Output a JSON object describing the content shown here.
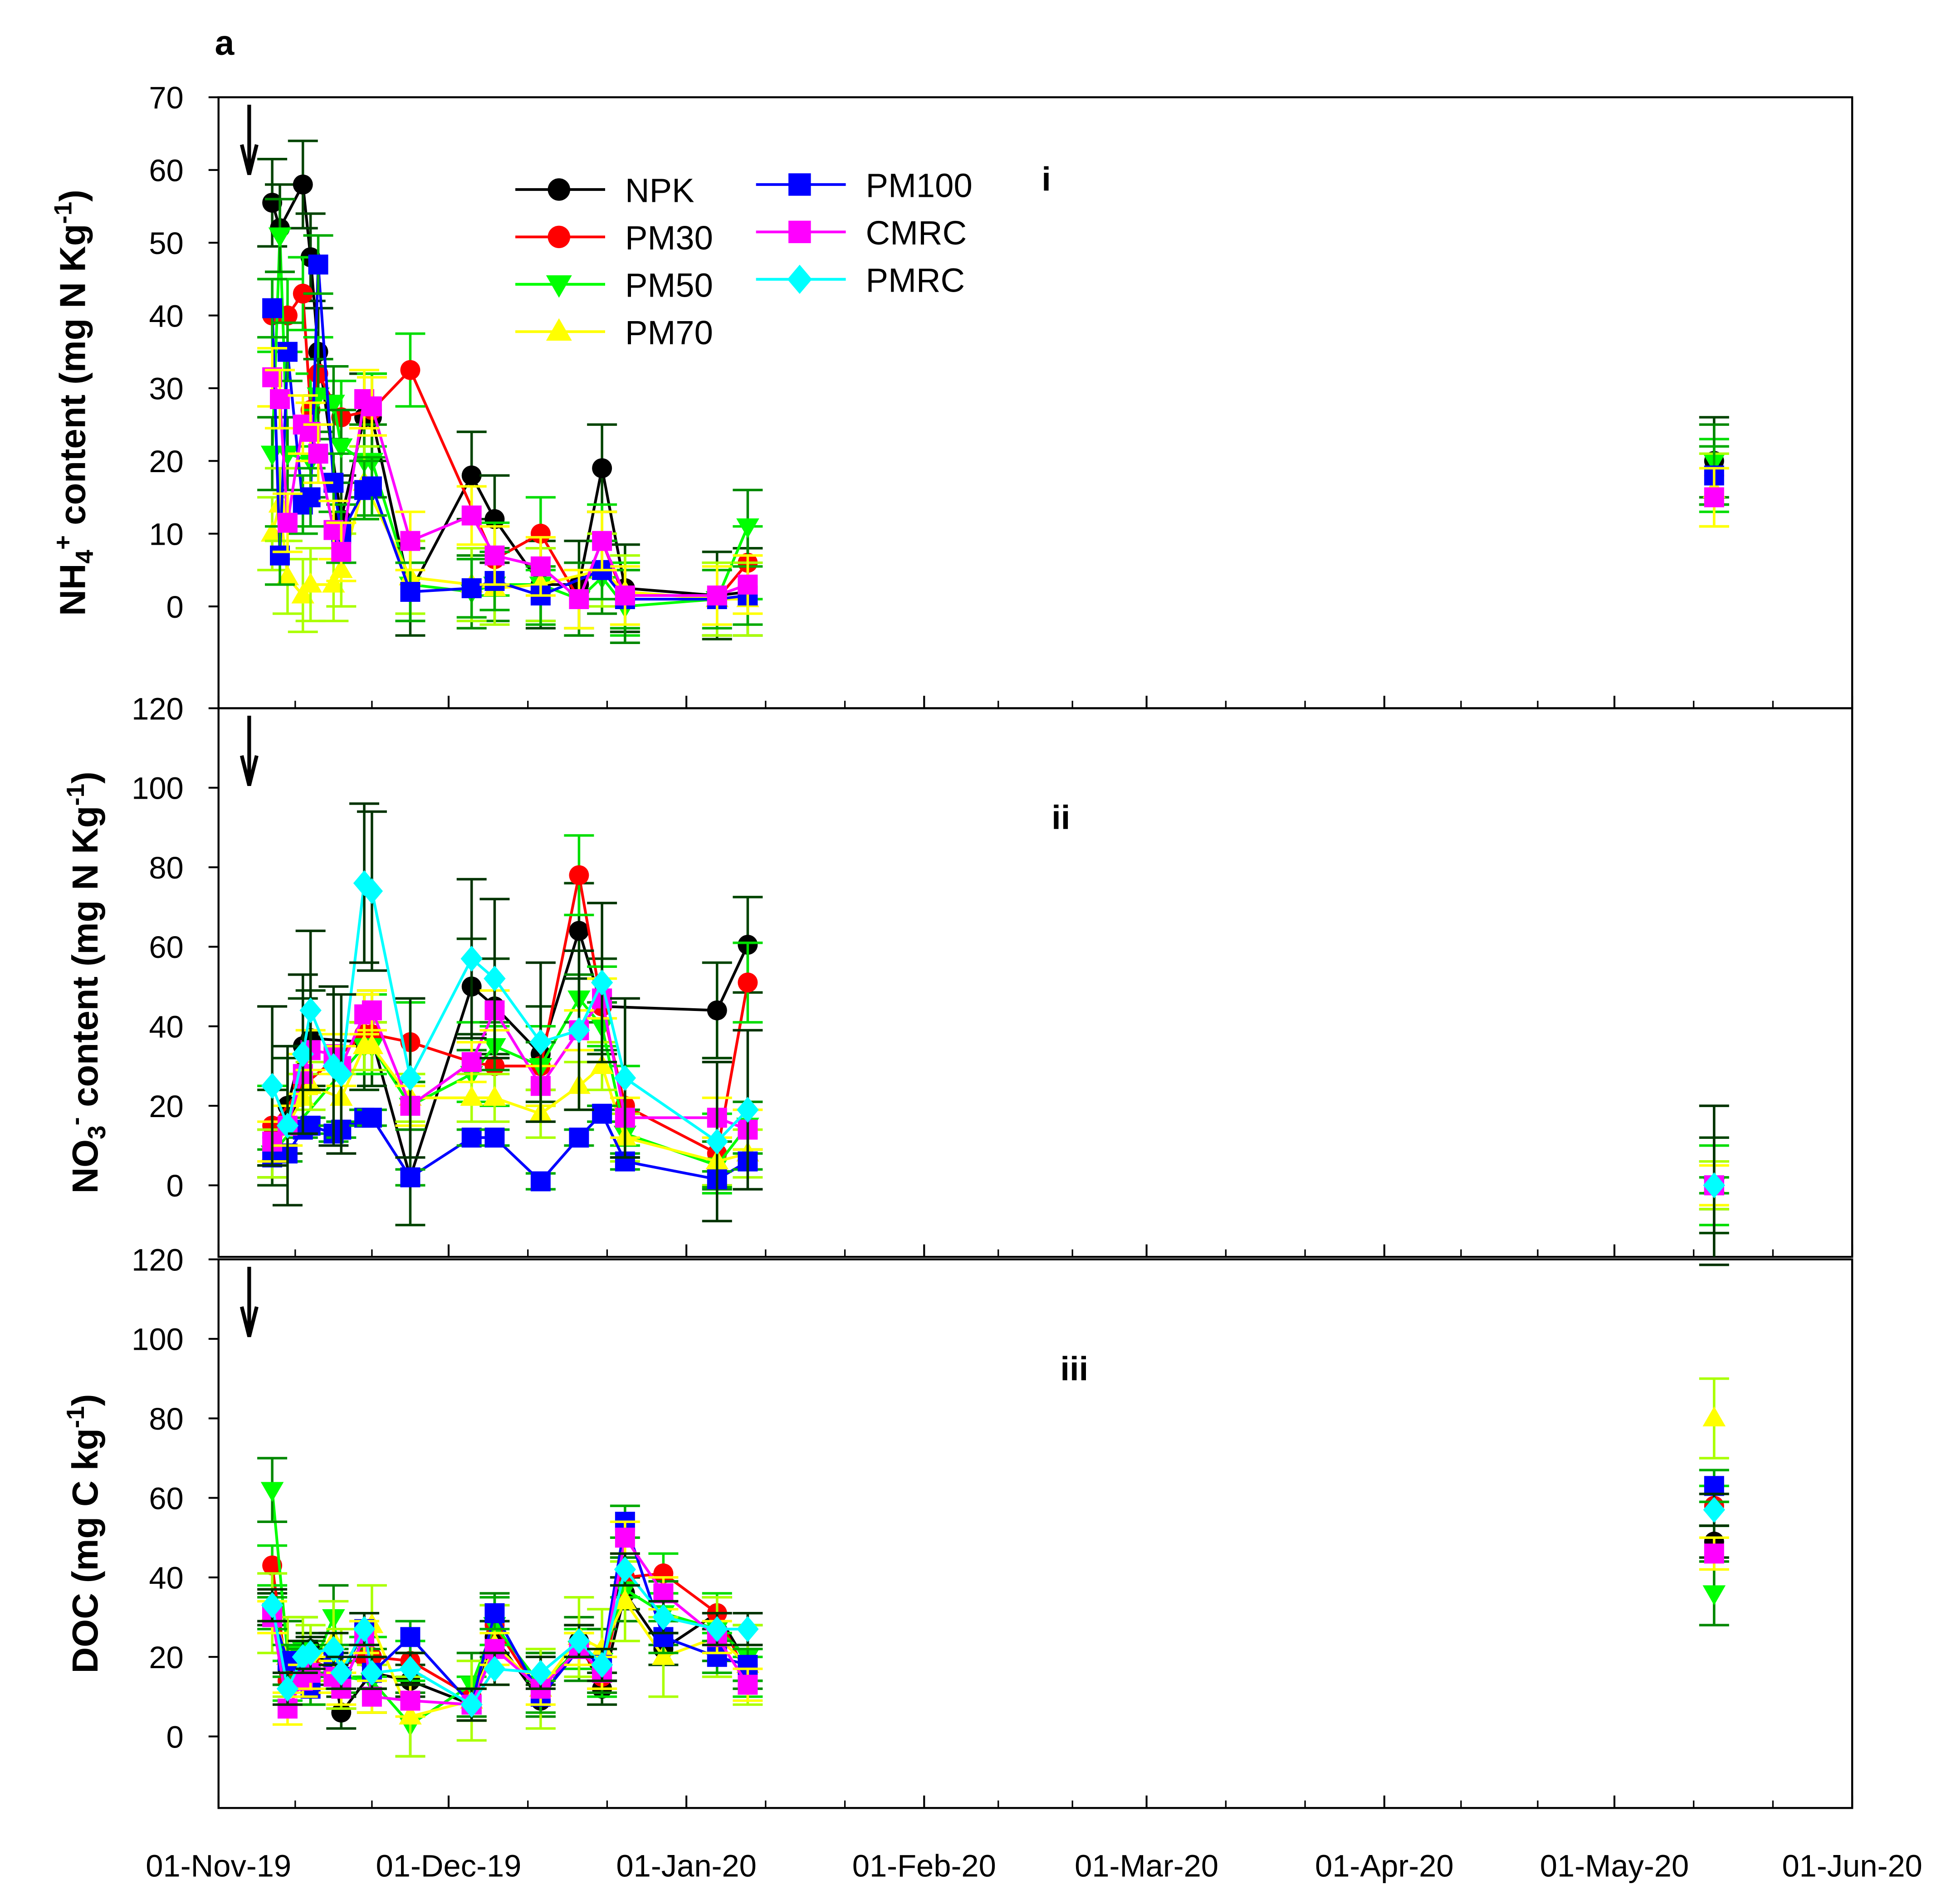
{
  "chart_data": {
    "type": "line",
    "figure_label": "a",
    "x_unit": "days since 01-Nov-19",
    "x_days": [
      7,
      8,
      9,
      11,
      12,
      13,
      15,
      16,
      19,
      20,
      25,
      33,
      36,
      42,
      47,
      50,
      53,
      58,
      65,
      69,
      195
    ],
    "xlim_days": [
      0,
      213
    ],
    "x_ticks": [
      {
        "day": 0,
        "label": "01-Nov-19"
      },
      {
        "day": 30,
        "label": "01-Dec-19"
      },
      {
        "day": 61,
        "label": "01-Jan-20"
      },
      {
        "day": 92,
        "label": "01-Feb-20"
      },
      {
        "day": 121,
        "label": "01-Mar-20"
      },
      {
        "day": 152,
        "label": "01-Apr-20"
      },
      {
        "day": 182,
        "label": "01-May-20"
      },
      {
        "day": 213,
        "label": "01-Jun-20"
      }
    ],
    "legend": [
      {
        "name": "NPK",
        "color": "#000000",
        "marker": "circle",
        "err_color": "#004400"
      },
      {
        "name": "PM30",
        "color": "#ff0000",
        "marker": "circle",
        "err_color": "#00dd00"
      },
      {
        "name": "PM50",
        "color": "#00ff00",
        "marker": "triangle-down",
        "err_color": "#008800"
      },
      {
        "name": "PM70",
        "color": "#ffff00",
        "marker": "triangle-up",
        "err_color": "#aaff00"
      },
      {
        "name": "PM100",
        "color": "#0000ff",
        "marker": "square",
        "err_color": "#00aa00"
      },
      {
        "name": "CMRC",
        "color": "#ff00ff",
        "marker": "square",
        "err_color": "#ffff00"
      },
      {
        "name": "PMRC",
        "color": "#00ffff",
        "marker": "diamond",
        "err_color": "#003300"
      }
    ],
    "application_arrow_day": 4,
    "panels": [
      {
        "id": "i",
        "label": "i",
        "ylabel": {
          "a": "NH",
          "sub": "4",
          "sup": "+",
          "b": " content (mg N Kg",
          "sup2": "-1",
          "c": ")"
        },
        "ylim": [
          -14,
          70
        ],
        "yticks": [
          0,
          10,
          20,
          30,
          40,
          50,
          60,
          70
        ],
        "series": {
          "NPK": {
            "y": [
              55.5,
              52,
              null,
              58,
              48,
              35,
              null,
              12,
              26,
              26,
              2,
              18,
              12,
              3,
              3,
              19,
              2.5,
              null,
              1.5,
              2,
              20
            ],
            "err": 6
          },
          "PM30": {
            "y": [
              40,
              null,
              40,
              43,
              27,
              32,
              null,
              26,
              null,
              27,
              32.5,
              null,
              6.5,
              10,
              1,
              9,
              1,
              null,
              1,
              6,
              18
            ],
            "err": 5
          },
          "PM50": {
            "y": [
              21,
              51,
              21,
              null,
              20,
              29,
              28,
              22,
              20,
              20,
              3,
              2,
              3,
              3,
              1,
              4,
              0,
              null,
              1,
              11,
              20
            ],
            "err": 5
          },
          "PM70": {
            "y": [
              10,
              14,
              4,
              1.5,
              3,
              null,
              3,
              5,
              17,
              null,
              4,
              3,
              2.5,
              3,
              null,
              5,
              2,
              null,
              1,
              1,
              16
            ],
            "err": 5
          },
          "PM100": {
            "y": [
              41,
              7,
              35,
              14,
              15,
              47,
              17,
              10,
              16,
              16.5,
              2,
              2.5,
              3.5,
              1.5,
              null,
              5,
              1,
              null,
              1,
              1.5,
              18
            ],
            "err": 4
          },
          "CMRC": {
            "y": [
              31.5,
              28.5,
              11.5,
              25,
              24,
              21,
              10.5,
              7.5,
              28.5,
              27.5,
              9,
              12.5,
              7,
              5.5,
              1,
              9,
              1.5,
              null,
              1.5,
              3,
              15
            ],
            "err": 4
          },
          "PMRC": {
            "y": [
              null,
              null,
              null,
              null,
              null,
              null,
              null,
              null,
              null,
              null,
              null,
              null,
              null,
              null,
              null,
              null,
              null,
              null,
              null,
              null,
              null
            ],
            "err": 0
          }
        }
      },
      {
        "id": "ii",
        "label": "ii",
        "ylabel": {
          "a": "NO",
          "sub": "3",
          "sup": "-",
          "b": "  content (mg N Kg",
          "sup2": "-1",
          "c": ")"
        },
        "ylim": [
          -18,
          120
        ],
        "yticks": [
          0,
          20,
          40,
          60,
          80,
          100,
          120
        ],
        "series": {
          "NPK": {
            "y": [
              12,
              null,
              20,
              35,
              37,
              null,
              null,
              null,
              36,
              37,
              2,
              50,
              45,
              33,
              64,
              45,
              null,
              null,
              44,
              60.5,
              0
            ],
            "err": 12
          },
          "PM30": {
            "y": [
              15,
              null,
              null,
              25,
              null,
              null,
              null,
              null,
              38,
              38,
              36,
              31,
              30,
              30,
              78,
              45,
              20,
              null,
              8,
              51,
              0
            ],
            "err": 10
          },
          "PM50": {
            "y": [
              8,
              null,
              null,
              null,
              null,
              null,
              null,
              null,
              35,
              35,
              20,
              28,
              35,
              30,
              47,
              40,
              13,
              null,
              5,
              15,
              0
            ],
            "err": 6
          },
          "PM70": {
            "y": [
              8,
              null,
              null,
              22,
              25,
              null,
              null,
              22,
              35,
              35,
              22,
              22,
              22,
              18,
              25,
              30,
              12,
              null,
              6,
              8,
              0
            ],
            "err": 6
          },
          "PM100": {
            "y": [
              7,
              null,
              8,
              14,
              15,
              null,
              13,
              14,
              17,
              17,
              2,
              12,
              12,
              1,
              12,
              18,
              6,
              null,
              1.5,
              6,
              0
            ],
            "err": 2
          },
          "CMRC": {
            "y": [
              11,
              null,
              15,
              28,
              34,
              null,
              33,
              30,
              43,
              44,
              20,
              31,
              44,
              25,
              39,
              47,
              17,
              null,
              17,
              14,
              0
            ],
            "err": 5
          },
          "PMRC": {
            "y": [
              25,
              null,
              15,
              33,
              44,
              null,
              30,
              28,
              76,
              74,
              27,
              57,
              52,
              36,
              39,
              51,
              27,
              null,
              11,
              19,
              0
            ],
            "err": 20
          }
        }
      },
      {
        "id": "iii",
        "label": "iii",
        "ylabel": {
          "a": "DOC (mg C kg",
          "sub": "",
          "sup": "",
          "b": "",
          "sup2": "-1",
          "c": ")"
        },
        "ylim": [
          -18,
          120
        ],
        "yticks": [
          0,
          20,
          40,
          60,
          80,
          100,
          120
        ],
        "series": {
          "NPK": {
            "y": [
              32,
              null,
              17,
              20,
              22,
              null,
              17,
              6,
              null,
              16,
              14,
              8,
              25,
              9,
              24,
              12,
              36,
              22,
              31,
              18,
              49
            ],
            "err": 4
          },
          "PM30": {
            "y": [
              43,
              null,
              14,
              18,
              19,
              null,
              17,
              null,
              20,
              20,
              19,
              10,
              28,
              10,
              22,
              15,
              40,
              41,
              31,
              15,
              58
            ],
            "err": 5
          },
          "PM50": {
            "y": [
              62,
              null,
              21,
              22,
              16,
              null,
              30,
              15,
              null,
              14,
              3,
              13,
              28,
              13,
              22,
              19,
              37,
              31,
              27,
              20,
              36
            ],
            "err": 8
          },
          "PM70": {
            "y": [
              31,
              null,
              20,
              20,
              18,
              null,
              24,
              17,
              null,
              28,
              5,
              9,
              23,
              12,
              25,
              22,
              34,
              20,
              25,
              18,
              80
            ],
            "err": 10
          },
          "PM100": {
            "y": [
              31,
              null,
              19,
              18,
              12,
              null,
              19,
              15,
              27,
              16,
              25,
              8,
              31,
              10,
              22,
              18,
              54,
              25,
              20,
              18,
              63
            ],
            "err": 4
          },
          "CMRC": {
            "y": [
              30,
              null,
              7,
              14,
              16,
              null,
              15,
              12,
              25,
              10,
              9,
              8,
              22,
              12,
              22,
              16,
              50,
              36,
              25,
              13,
              46
            ],
            "err": 4
          },
          "PMRC": {
            "y": [
              33,
              null,
              12,
              20,
              21,
              null,
              22,
              16,
              27,
              16,
              17,
              8,
              17,
              16,
              24,
              18,
              42,
              30,
              27,
              27,
              57
            ],
            "err": 4
          }
        }
      }
    ]
  }
}
